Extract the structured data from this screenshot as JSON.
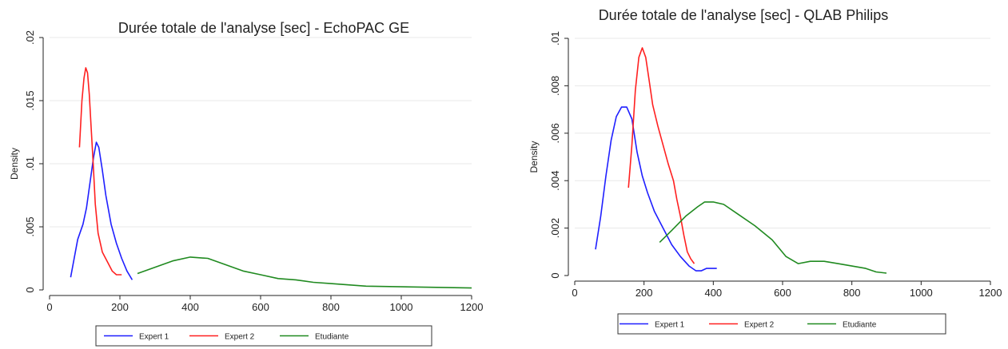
{
  "chart_data": [
    {
      "type": "line",
      "title": "Durée totale de l'analyse [sec] - EchoPAC GE",
      "xlabel": "",
      "ylabel": "Density",
      "xlim": [
        0,
        1200
      ],
      "ylim": [
        0,
        0.02
      ],
      "xticks": [
        0,
        200,
        400,
        600,
        800,
        1000,
        1200
      ],
      "xtick_labels": [
        "0",
        "200",
        "400",
        "600",
        "800",
        "1000",
        "1200"
      ],
      "yticks": [
        0,
        0.005,
        0.01,
        0.015,
        0.02
      ],
      "ytick_labels": [
        "0",
        ".005",
        ".01",
        ".015",
        ".02"
      ],
      "grid": true,
      "legend_position": "bottom",
      "series": [
        {
          "name": "Expert 1",
          "color": "#1f1fff",
          "points": [
            [
              60,
              0.001
            ],
            [
              70,
              0.0025
            ],
            [
              80,
              0.004
            ],
            [
              95,
              0.0052
            ],
            [
              105,
              0.0065
            ],
            [
              115,
              0.0085
            ],
            [
              125,
              0.0105
            ],
            [
              133,
              0.0117
            ],
            [
              140,
              0.0113
            ],
            [
              150,
              0.0095
            ],
            [
              160,
              0.0075
            ],
            [
              175,
              0.0052
            ],
            [
              190,
              0.0037
            ],
            [
              205,
              0.0025
            ],
            [
              220,
              0.0015
            ],
            [
              235,
              0.0008
            ]
          ]
        },
        {
          "name": "Expert 2",
          "color": "#ff2020",
          "points": [
            [
              85,
              0.0113
            ],
            [
              92,
              0.015
            ],
            [
              98,
              0.0168
            ],
            [
              103,
              0.0176
            ],
            [
              108,
              0.0172
            ],
            [
              113,
              0.0155
            ],
            [
              118,
              0.013
            ],
            [
              124,
              0.01
            ],
            [
              130,
              0.0068
            ],
            [
              138,
              0.0045
            ],
            [
              150,
              0.003
            ],
            [
              165,
              0.0022
            ],
            [
              178,
              0.0015
            ],
            [
              190,
              0.0012
            ],
            [
              205,
              0.0012
            ]
          ]
        },
        {
          "name": "Etudiante",
          "color": "#208a20",
          "points": [
            [
              250,
              0.0013
            ],
            [
              300,
              0.0018
            ],
            [
              350,
              0.0023
            ],
            [
              400,
              0.0026
            ],
            [
              450,
              0.0025
            ],
            [
              500,
              0.002
            ],
            [
              550,
              0.0015
            ],
            [
              600,
              0.0012
            ],
            [
              650,
              0.0009
            ],
            [
              700,
              0.0008
            ],
            [
              750,
              0.0006
            ],
            [
              800,
              0.0005
            ],
            [
              850,
              0.0004
            ],
            [
              900,
              0.0003
            ],
            [
              1000,
              0.00025
            ],
            [
              1100,
              0.0002
            ],
            [
              1200,
              0.00015
            ]
          ]
        }
      ]
    },
    {
      "type": "line",
      "title": "Durée totale de l'analyse [sec] - QLAB Philips",
      "xlabel": "",
      "ylabel": "Density",
      "xlim": [
        0,
        1200
      ],
      "ylim": [
        0,
        0.01
      ],
      "xticks": [
        0,
        200,
        400,
        600,
        800,
        1000,
        1200
      ],
      "xtick_labels": [
        "0",
        "200",
        "400",
        "600",
        "800",
        "1000",
        "1200"
      ],
      "yticks": [
        0,
        0.002,
        0.004,
        0.006,
        0.008,
        0.01
      ],
      "ytick_labels": [
        "0",
        ".002",
        ".004",
        ".006",
        ".008",
        ".01"
      ],
      "grid": true,
      "legend_position": "bottom",
      "series": [
        {
          "name": "Expert 1",
          "color": "#1f1fff",
          "points": [
            [
              60,
              0.0011
            ],
            [
              75,
              0.0025
            ],
            [
              90,
              0.0042
            ],
            [
              105,
              0.0057
            ],
            [
              120,
              0.0067
            ],
            [
              135,
              0.0071
            ],
            [
              150,
              0.0071
            ],
            [
              165,
              0.0066
            ],
            [
              180,
              0.0052
            ],
            [
              195,
              0.0042
            ],
            [
              210,
              0.0035
            ],
            [
              230,
              0.0027
            ],
            [
              255,
              0.002
            ],
            [
              280,
              0.0013
            ],
            [
              305,
              0.0008
            ],
            [
              330,
              0.0004
            ],
            [
              350,
              0.0002
            ],
            [
              365,
              0.0002
            ],
            [
              380,
              0.0003
            ],
            [
              395,
              0.0003
            ],
            [
              410,
              0.0003
            ]
          ]
        },
        {
          "name": "Expert 2",
          "color": "#ff2020",
          "points": [
            [
              155,
              0.0037
            ],
            [
              165,
              0.0055
            ],
            [
              175,
              0.0078
            ],
            [
              185,
              0.0092
            ],
            [
              195,
              0.0096
            ],
            [
              205,
              0.0092
            ],
            [
              215,
              0.0082
            ],
            [
              225,
              0.0072
            ],
            [
              240,
              0.0063
            ],
            [
              255,
              0.0055
            ],
            [
              270,
              0.0047
            ],
            [
              285,
              0.004
            ],
            [
              295,
              0.0032
            ],
            [
              305,
              0.0025
            ],
            [
              315,
              0.0017
            ],
            [
              325,
              0.001
            ],
            [
              335,
              0.0007
            ],
            [
              345,
              0.0005
            ]
          ]
        },
        {
          "name": "Etudiante",
          "color": "#208a20",
          "points": [
            [
              245,
              0.0014
            ],
            [
              280,
              0.0019
            ],
            [
              320,
              0.0025
            ],
            [
              355,
              0.0029
            ],
            [
              375,
              0.0031
            ],
            [
              400,
              0.0031
            ],
            [
              430,
              0.003
            ],
            [
              470,
              0.0026
            ],
            [
              520,
              0.0021
            ],
            [
              570,
              0.0015
            ],
            [
              610,
              0.0008
            ],
            [
              645,
              0.0005
            ],
            [
              680,
              0.0006
            ],
            [
              720,
              0.0006
            ],
            [
              760,
              0.0005
            ],
            [
              800,
              0.0004
            ],
            [
              840,
              0.0003
            ],
            [
              870,
              0.00015
            ],
            [
              900,
              0.0001
            ]
          ]
        }
      ]
    }
  ]
}
